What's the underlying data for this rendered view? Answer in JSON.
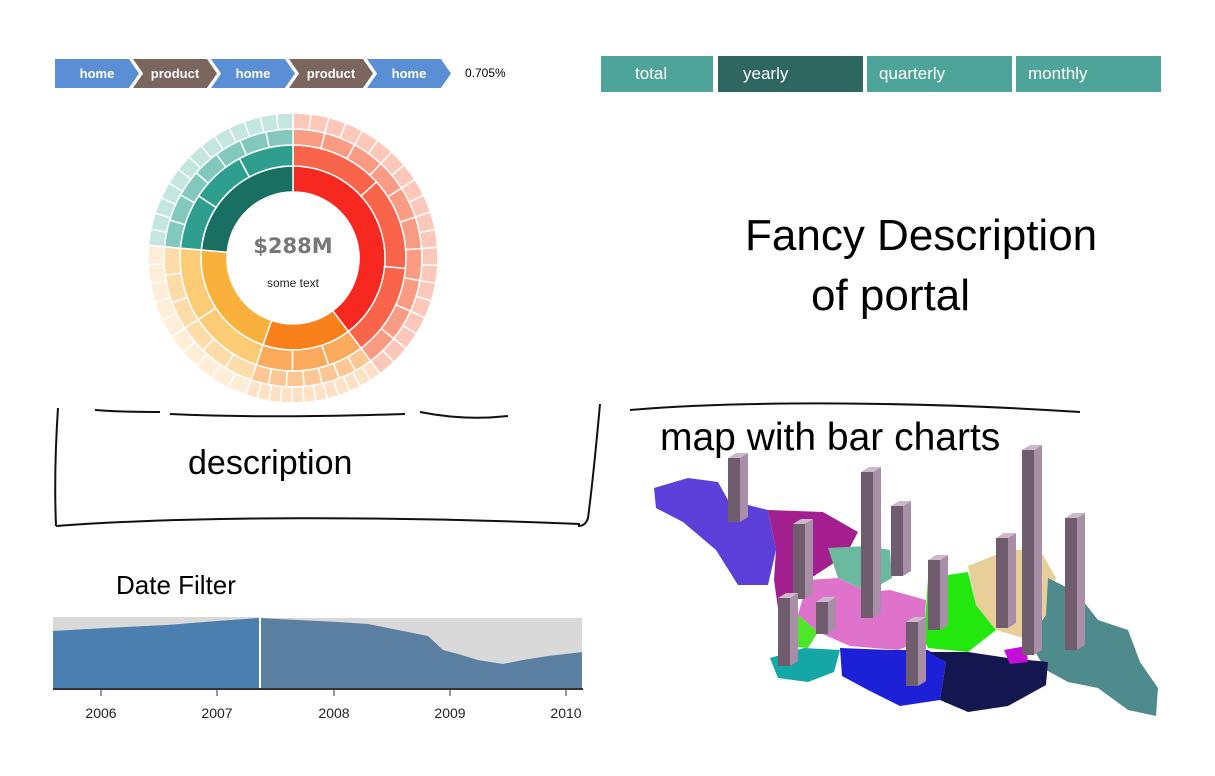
{
  "breadcrumb": {
    "items": [
      {
        "label": "home",
        "color": "#5b8fd5"
      },
      {
        "label": "product",
        "color": "#7b665e"
      },
      {
        "label": "home",
        "color": "#5b8fd5"
      },
      {
        "label": "product",
        "color": "#7b665e"
      },
      {
        "label": "home",
        "color": "#5b8fd5"
      }
    ],
    "percentage": "0.705%"
  },
  "tabs": [
    {
      "label": "total",
      "active": false
    },
    {
      "label": "yearly",
      "active": true
    },
    {
      "label": "quarterly",
      "active": false
    },
    {
      "label": "monthly",
      "active": false
    }
  ],
  "sunburst": {
    "center_value": "$288M",
    "center_text": "some text"
  },
  "fancy_description": {
    "line1": "Fancy Description",
    "line2": "of portal"
  },
  "description_box": {
    "label": "description"
  },
  "map": {
    "label": "map with bar charts"
  },
  "date_filter": {
    "label": "Date Filter",
    "axis_ticks": [
      "2006",
      "2007",
      "2008",
      "2009",
      "2010"
    ]
  },
  "colors": {
    "accent_tab": "#4fa49a",
    "accent_tab_active": "#2e6660",
    "brush_selected": "#4a7fb0",
    "brush_unselected": "#5b7fa0"
  }
}
